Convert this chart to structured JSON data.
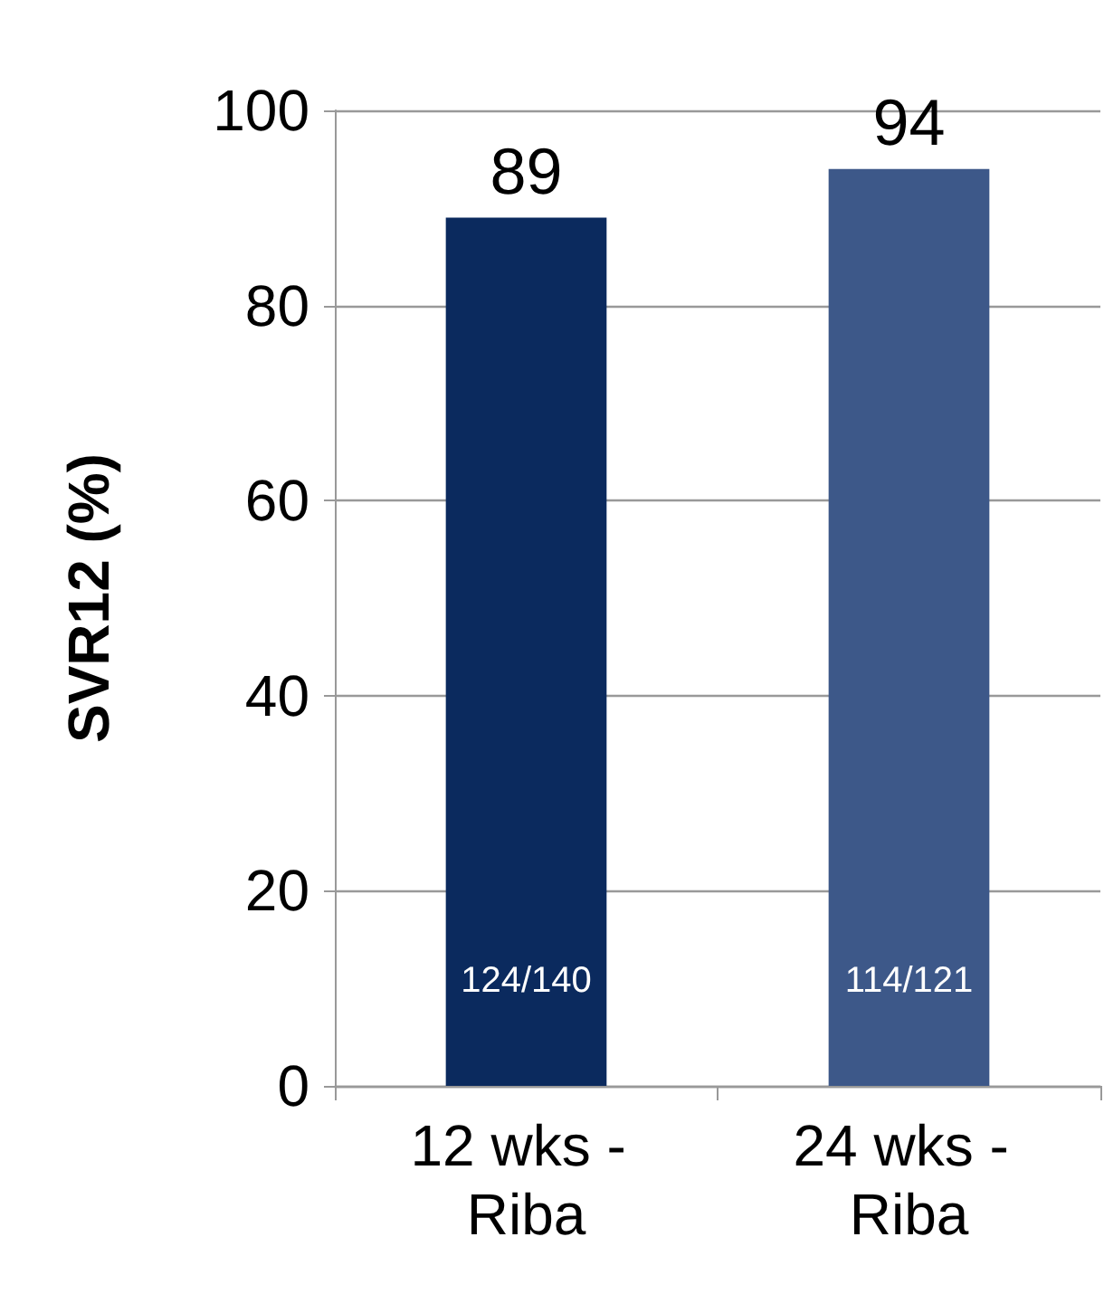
{
  "chart_data": {
    "type": "bar",
    "ylabel": "SVR12 (%)",
    "categories": [
      "12 wks - Riba",
      "24 wks - Riba"
    ],
    "values": [
      89,
      94
    ],
    "colors": [
      "#0b2a5e",
      "#3d5889"
    ],
    "ylim": [
      0,
      100
    ],
    "yticks": [
      0,
      20,
      40,
      60,
      80,
      100
    ],
    "grid": "y",
    "data_labels": true,
    "annotations": [
      "124/140",
      "114/121"
    ]
  }
}
